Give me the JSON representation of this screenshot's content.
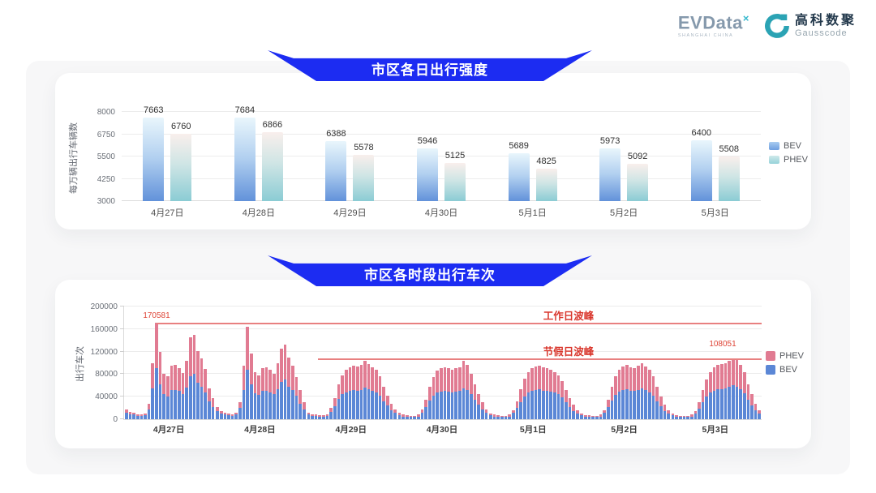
{
  "header": {
    "evdata": {
      "name": "EVData",
      "sup": "×",
      "tagline": "SHANGHAI CHINA"
    },
    "gausscode": {
      "cn": "高科数聚",
      "en": "Gausscode"
    }
  },
  "colors": {
    "banner_blue": "#1c2cf2",
    "bev_bar": "#5b87d6",
    "phev_bar": "#e17b92",
    "bev_gradient_bottom": "#6292da",
    "phev_gradient_bottom": "#8bccd4",
    "annotation_red": "#d9362c",
    "peak_line": "#e88080"
  },
  "chart_data": [
    {
      "type": "bar",
      "title": "市区各日出行强度",
      "xlabel": "",
      "ylabel": "每万辆出行车辆数",
      "ylim": [
        3000,
        8000
      ],
      "yticks": [
        3000,
        4250,
        5500,
        6750,
        8000
      ],
      "grid": true,
      "legend_position": "right",
      "categories": [
        "4月27日",
        "4月28日",
        "4月29日",
        "4月30日",
        "5月1日",
        "5月2日",
        "5月3日"
      ],
      "series": [
        {
          "name": "BEV",
          "values": [
            7663,
            7684,
            6388,
            5946,
            5689,
            5973,
            6400
          ]
        },
        {
          "name": "PHEV",
          "values": [
            6760,
            6866,
            5578,
            5125,
            4825,
            5092,
            5508
          ]
        }
      ]
    },
    {
      "type": "bar",
      "subtype": "stacked-hourly",
      "title": "市区各时段出行车次",
      "xlabel": "",
      "ylabel": "出行车次",
      "ylim": [
        0,
        200000
      ],
      "yticks": [
        0,
        40000,
        80000,
        120000,
        160000,
        200000
      ],
      "grid": true,
      "legend_position": "right",
      "categories": [
        "4月27日",
        "4月28日",
        "4月29日",
        "4月30日",
        "5月1日",
        "5月2日",
        "5月3日"
      ],
      "hours_per_day": 24,
      "series": [
        {
          "name": "BEV",
          "values": [
            [
              12000,
              9000,
              8000,
              6000,
              6000,
              7000,
              18000,
              55000,
              90000,
              62000,
              45000,
              41000,
              52000,
              52000,
              50000,
              45000,
              56000,
              76000,
              80000,
              65000,
              58000,
              48000,
              32000,
              22000
            ],
            [
              14000,
              10000,
              8000,
              7000,
              6000,
              8000,
              20000,
              52000,
              88000,
              62000,
              46000,
              43000,
              50000,
              50000,
              48000,
              44000,
              54000,
              66000,
              70000,
              58000,
              52000,
              42000,
              28000,
              17000
            ],
            [
              8000,
              6000,
              6000,
              5000,
              5000,
              6000,
              13000,
              23000,
              36000,
              44000,
              48000,
              50000,
              52000,
              50000,
              52000,
              56000,
              53000,
              50000,
              48000,
              42000,
              32000,
              24000,
              16000,
              11000
            ],
            [
              7000,
              5000,
              5000,
              4000,
              4000,
              5000,
              12000,
              21000,
              33000,
              42000,
              47000,
              49000,
              50000,
              49000,
              48000,
              49000,
              50000,
              55000,
              52000,
              44000,
              35000,
              26000,
              17000,
              11000
            ],
            [
              7000,
              5000,
              5000,
              4000,
              4000,
              5000,
              11000,
              20000,
              31000,
              41000,
              47000,
              50000,
              52000,
              53000,
              51000,
              50000,
              49000,
              47000,
              44000,
              39000,
              30000,
              22000,
              15000,
              10000
            ],
            [
              7000,
              5000,
              5000,
              4000,
              4000,
              5000,
              11000,
              21000,
              33000,
              43000,
              49000,
              52000,
              53000,
              51000,
              50000,
              52000,
              55000,
              52000,
              48000,
              42000,
              32000,
              23000,
              15000,
              10000
            ],
            [
              7000,
              5000,
              4000,
              4000,
              4000,
              5000,
              10000,
              19000,
              30000,
              40000,
              47000,
              51000,
              53000,
              54000,
              55000,
              57000,
              60000,
              58000,
              53000,
              46000,
              35000,
              25000,
              16000,
              10000
            ]
          ]
        },
        {
          "name": "PHEV",
          "values": [
            [
              6000,
              4000,
              3000,
              3000,
              2000,
              3000,
              10000,
              45000,
              80581,
              57000,
              36000,
              35000,
              43000,
              44000,
              40000,
              37000,
              47000,
              70000,
              70000,
              56000,
              50000,
              41000,
              23000,
              15000
            ],
            [
              8000,
              5000,
              4000,
              3000,
              3000,
              3000,
              10000,
              43000,
              76000,
              55000,
              37000,
              35000,
              40000,
              42000,
              40000,
              36000,
              46000,
              59000,
              63000,
              52000,
              43000,
              33000,
              24000,
              13000
            ],
            [
              4000,
              3000,
              2000,
              2000,
              2000,
              3000,
              7000,
              15000,
              26000,
              34000,
              40000,
              42000,
              43000,
              43000,
              44000,
              48000,
              45000,
              42000,
              40000,
              34000,
              26000,
              18000,
              12000,
              7000
            ],
            [
              4000,
              3000,
              2000,
              2000,
              2000,
              3000,
              6000,
              14000,
              25000,
              33000,
              39000,
              41000,
              42000,
              41000,
              40000,
              41000,
              42000,
              48000,
              44000,
              36000,
              27000,
              19000,
              13000,
              7000
            ],
            [
              3000,
              3000,
              2000,
              2000,
              2000,
              3000,
              5000,
              12000,
              23000,
              31000,
              37000,
              40000,
              41000,
              42000,
              41000,
              40000,
              39000,
              37000,
              34000,
              29000,
              22000,
              16000,
              11000,
              6000
            ],
            [
              3000,
              2000,
              2000,
              2000,
              2000,
              3000,
              5000,
              13000,
              25000,
              33000,
              39000,
              42000,
              43000,
              41000,
              40000,
              43000,
              45000,
              42000,
              40000,
              34000,
              26000,
              17000,
              11000,
              6000
            ],
            [
              3000,
              2000,
              2000,
              2000,
              2000,
              3000,
              5000,
              11000,
              22000,
              30000,
              37000,
              41000,
              43000,
              44000,
              45000,
              47000,
              48051,
              47000,
              43000,
              38000,
              27000,
              19000,
              12000,
              6000
            ]
          ]
        }
      ],
      "annotations": [
        {
          "label": "工作日波峰",
          "value": 170581,
          "value_label": "170581"
        },
        {
          "label": "节假日波峰",
          "value": 108051,
          "value_label": "108051"
        }
      ]
    }
  ]
}
